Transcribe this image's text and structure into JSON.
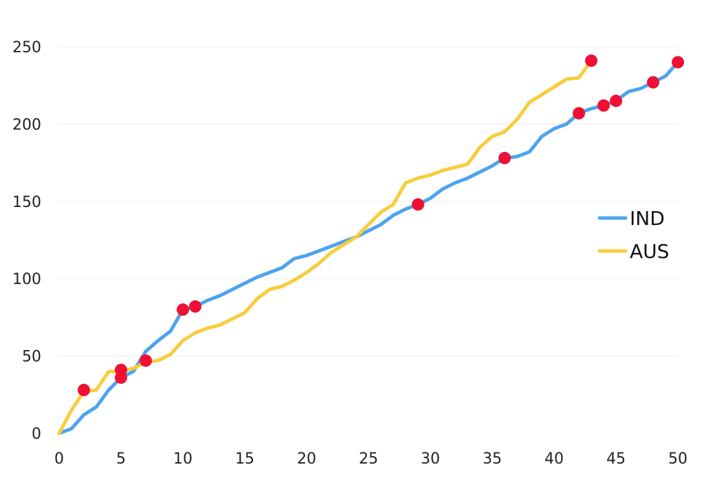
{
  "chart_data": {
    "type": "line",
    "title": "",
    "xlabel": "",
    "ylabel": "",
    "xlim": [
      0,
      50
    ],
    "ylim": [
      0,
      250
    ],
    "x_ticks": [
      0,
      5,
      10,
      15,
      20,
      25,
      30,
      35,
      40,
      45,
      50
    ],
    "y_ticks": [
      0,
      50,
      100,
      150,
      200,
      250
    ],
    "grid": "horizontal",
    "legend_position": "right",
    "series": [
      {
        "name": "IND",
        "color": "#4da3ee",
        "points": [
          [
            0,
            0
          ],
          [
            1,
            3
          ],
          [
            2,
            12
          ],
          [
            3,
            17
          ],
          [
            4,
            28
          ],
          [
            5,
            36
          ],
          [
            6,
            40
          ],
          [
            7,
            53
          ],
          [
            8,
            60
          ],
          [
            9,
            66
          ],
          [
            10,
            80
          ],
          [
            11,
            82
          ],
          [
            12,
            86
          ],
          [
            13,
            89
          ],
          [
            14,
            93
          ],
          [
            15,
            97
          ],
          [
            16,
            101
          ],
          [
            17,
            104
          ],
          [
            18,
            107
          ],
          [
            19,
            113
          ],
          [
            20,
            115
          ],
          [
            21,
            118
          ],
          [
            22,
            121
          ],
          [
            23,
            124
          ],
          [
            24,
            127
          ],
          [
            25,
            131
          ],
          [
            26,
            135
          ],
          [
            27,
            141
          ],
          [
            28,
            145
          ],
          [
            29,
            148
          ],
          [
            30,
            152
          ],
          [
            31,
            158
          ],
          [
            32,
            162
          ],
          [
            33,
            165
          ],
          [
            34,
            169
          ],
          [
            35,
            173
          ],
          [
            36,
            178
          ],
          [
            37,
            179
          ],
          [
            38,
            182
          ],
          [
            39,
            192
          ],
          [
            40,
            197
          ],
          [
            41,
            200
          ],
          [
            42,
            207
          ],
          [
            43,
            210
          ],
          [
            44,
            212
          ],
          [
            45,
            215
          ],
          [
            46,
            221
          ],
          [
            47,
            223
          ],
          [
            48,
            227
          ],
          [
            49,
            231
          ],
          [
            50,
            240
          ]
        ],
        "wickets": [
          [
            5,
            36
          ],
          [
            7,
            47
          ],
          [
            10,
            80
          ],
          [
            11,
            82
          ],
          [
            29,
            148
          ],
          [
            36,
            178
          ],
          [
            42,
            207
          ],
          [
            44,
            212
          ],
          [
            45,
            215
          ],
          [
            48,
            227
          ],
          [
            50,
            240
          ]
        ]
      },
      {
        "name": "AUS",
        "color": "#f7cd3b",
        "points": [
          [
            0,
            0
          ],
          [
            1,
            15
          ],
          [
            2,
            27
          ],
          [
            3,
            28
          ],
          [
            4,
            40
          ],
          [
            5,
            40
          ],
          [
            6,
            42
          ],
          [
            7,
            46
          ],
          [
            8,
            47
          ],
          [
            9,
            51
          ],
          [
            10,
            60
          ],
          [
            11,
            65
          ],
          [
            12,
            68
          ],
          [
            13,
            70
          ],
          [
            14,
            74
          ],
          [
            15,
            78
          ],
          [
            16,
            87
          ],
          [
            17,
            93
          ],
          [
            18,
            95
          ],
          [
            19,
            99
          ],
          [
            20,
            104
          ],
          [
            21,
            110
          ],
          [
            22,
            117
          ],
          [
            23,
            122
          ],
          [
            24,
            127
          ],
          [
            25,
            135
          ],
          [
            26,
            143
          ],
          [
            27,
            148
          ],
          [
            28,
            162
          ],
          [
            29,
            165
          ],
          [
            30,
            167
          ],
          [
            31,
            170
          ],
          [
            32,
            172
          ],
          [
            33,
            174
          ],
          [
            34,
            185
          ],
          [
            35,
            192
          ],
          [
            36,
            195
          ],
          [
            37,
            203
          ],
          [
            38,
            214
          ],
          [
            39,
            219
          ],
          [
            40,
            224
          ],
          [
            41,
            229
          ],
          [
            42,
            230
          ],
          [
            43,
            241
          ]
        ],
        "wickets": [
          [
            2,
            28
          ],
          [
            5,
            41
          ],
          [
            43,
            241
          ]
        ]
      }
    ],
    "marker_color": "#ee1133"
  }
}
